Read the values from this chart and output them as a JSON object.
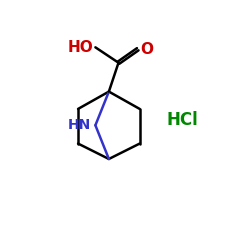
{
  "background": "#ffffff",
  "bond_color": "#000000",
  "N_color": "#3333cc",
  "O_color": "#cc0000",
  "HCl_color": "#008800",
  "HCl_text": "HCl",
  "HN_text": "HN",
  "HO_text": "HO",
  "O_text": "O",
  "figsize": [
    2.5,
    2.5
  ],
  "dpi": 100,
  "xlim": [
    0,
    10
  ],
  "ylim": [
    0,
    10
  ]
}
